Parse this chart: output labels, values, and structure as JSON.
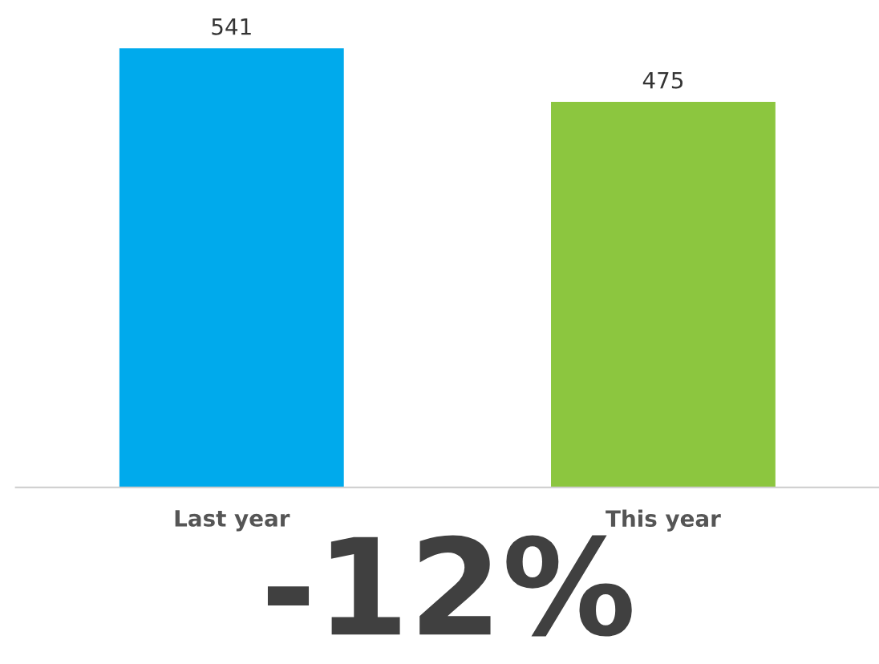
{
  "chart_data": {
    "type": "bar",
    "categories": [
      "Last year",
      "This year"
    ],
    "values": [
      541,
      475
    ],
    "colors": [
      "#00aaec",
      "#8cc63f"
    ],
    "data_labels": true,
    "grid": false,
    "legend": false,
    "tick_labels": "x",
    "annotations": [
      "-12%"
    ]
  }
}
